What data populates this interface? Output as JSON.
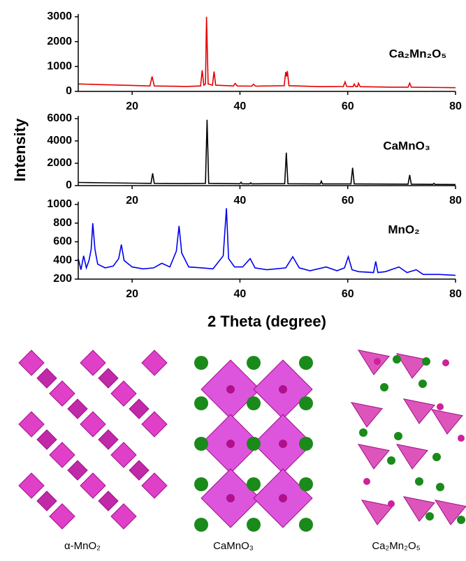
{
  "chart_data": [
    {
      "type": "line",
      "x": [
        10,
        15,
        20,
        23.3,
        23.7,
        24.1,
        30,
        32.7,
        33.0,
        33.3,
        33.6,
        33.8,
        34.1,
        34.9,
        35.2,
        35.5,
        38.8,
        39.1,
        39.5,
        42.2,
        42.5,
        42.9,
        48.2,
        48.5,
        48.65,
        48.8,
        49.1,
        55,
        59.2,
        59.5,
        59.8,
        61.0,
        61.2,
        61.5,
        61.8,
        62.0,
        62.3,
        68,
        71.2,
        71.5,
        71.8,
        80
      ],
      "series": [
        {
          "name": "Ca₂Mn₂O₅",
          "color": "#e60000",
          "values": [
            300,
            270,
            240,
            220,
            600,
            220,
            200,
            220,
            850,
            250,
            300,
            3000,
            300,
            250,
            800,
            250,
            220,
            320,
            220,
            210,
            290,
            210,
            230,
            780,
            600,
            820,
            230,
            190,
            200,
            380,
            200,
            190,
            300,
            190,
            190,
            330,
            190,
            170,
            170,
            330,
            170,
            150
          ]
        }
      ],
      "xlim": [
        10,
        80
      ],
      "xticks": [
        20,
        40,
        60,
        80
      ],
      "ylim": [
        0,
        3000
      ],
      "yticks": [
        0,
        1000,
        2000,
        3000
      ]
    },
    {
      "type": "line",
      "x": [
        10,
        15,
        20,
        23.5,
        23.8,
        24.1,
        30,
        33.6,
        33.9,
        34.2,
        40.0,
        40.2,
        40.4,
        41.8,
        42.0,
        42.2,
        48.3,
        48.6,
        48.9,
        54.9,
        55.1,
        55.3,
        60.6,
        60.9,
        61.2,
        71.2,
        71.5,
        71.8,
        75.8,
        76,
        76.2,
        80
      ],
      "series": [
        {
          "name": "CaMnO₃",
          "color": "#000000",
          "values": [
            280,
            250,
            220,
            200,
            1100,
            200,
            180,
            200,
            5900,
            200,
            170,
            300,
            170,
            160,
            250,
            160,
            170,
            2950,
            170,
            150,
            400,
            150,
            150,
            1600,
            150,
            130,
            950,
            130,
            110,
            200,
            110,
            100
          ]
        }
      ],
      "xlim": [
        10,
        80
      ],
      "xticks": [
        20,
        40,
        60,
        80
      ],
      "ylim": [
        0,
        6000
      ],
      "yticks": [
        0,
        2000,
        4000,
        6000
      ],
      "ylabel": "Intensity"
    },
    {
      "type": "line",
      "x": [
        10,
        10.5,
        11,
        11.5,
        12,
        12.4,
        12.7,
        13.1,
        13.6,
        15,
        16.5,
        17.5,
        18,
        18.5,
        20,
        22,
        24,
        25.5,
        27,
        28.2,
        28.7,
        29.2,
        30.5,
        33,
        35,
        36.9,
        37.5,
        37.9,
        39,
        40.5,
        41.9,
        42.8,
        45,
        48.5,
        49.8,
        51,
        53,
        56,
        58,
        59.4,
        60.1,
        60.8,
        62,
        64.8,
        65.2,
        65.6,
        67,
        69.5,
        71,
        72.7,
        74,
        77,
        80
      ],
      "series": [
        {
          "name": "MnO₂",
          "color": "#0000ee",
          "values": [
            420,
            300,
            450,
            320,
            400,
            520,
            800,
            520,
            360,
            320,
            340,
            420,
            570,
            400,
            330,
            310,
            320,
            370,
            330,
            500,
            770,
            480,
            330,
            320,
            310,
            450,
            960,
            420,
            330,
            330,
            420,
            320,
            300,
            320,
            440,
            320,
            290,
            330,
            290,
            320,
            440,
            300,
            280,
            270,
            390,
            270,
            280,
            330,
            270,
            300,
            250,
            250,
            240
          ]
        }
      ],
      "xlim": [
        10,
        80
      ],
      "xticks": [
        20,
        40,
        60,
        80
      ],
      "ylim": [
        200,
        1000
      ],
      "yticks": [
        200,
        400,
        600,
        800,
        1000
      ],
      "xlabel": "2 Theta (degree)"
    }
  ],
  "structures": [
    {
      "label": "α-MnO₂"
    },
    {
      "label": "CaMnO₃"
    },
    {
      "label": "Ca₂Mn₂O₅"
    }
  ]
}
